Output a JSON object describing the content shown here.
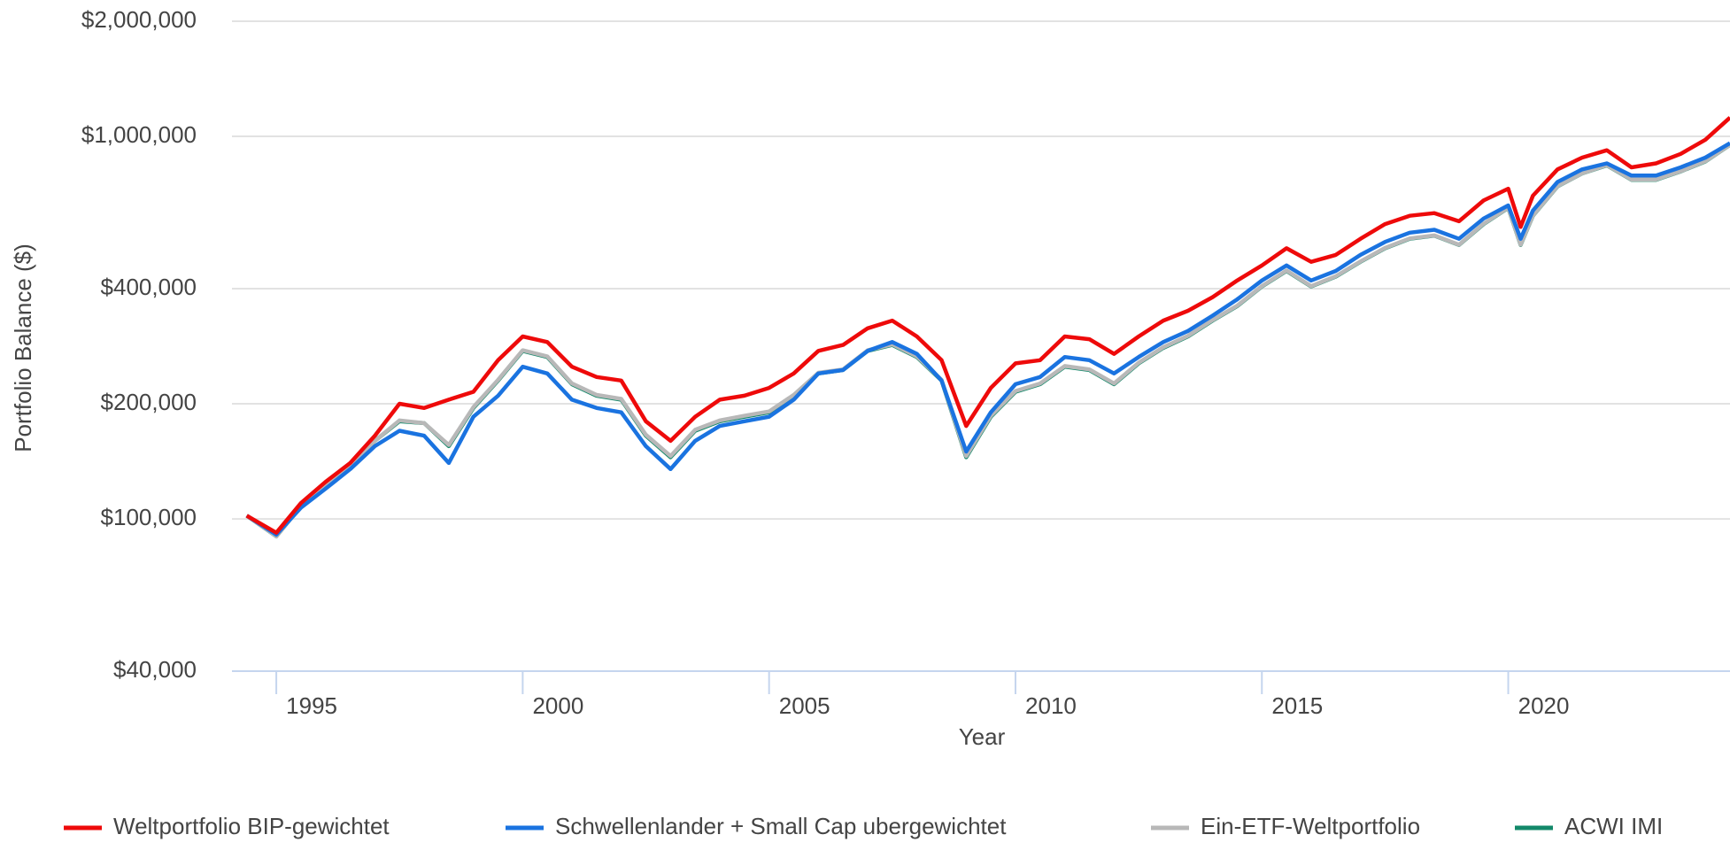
{
  "chart_data": {
    "type": "line",
    "y_label": "Portfolio Balance ($)",
    "x_label": "Year",
    "log_y": true,
    "grid": true,
    "legend": "bottom",
    "xlim": [
      1994.1,
      2024.5
    ],
    "xticks": [
      1995,
      2000,
      2005,
      2010,
      2015,
      2020
    ],
    "ylim": [
      40000,
      2000000
    ],
    "yticks": [
      {
        "value": 40000,
        "label": "$40,000"
      },
      {
        "value": 100000,
        "label": "$100,000"
      },
      {
        "value": 200000,
        "label": "$200,000"
      },
      {
        "value": 400000,
        "label": "$400,000"
      },
      {
        "value": 1000000,
        "label": "$1,000,000"
      },
      {
        "value": 2000000,
        "label": "$2,000,000"
      }
    ],
    "x": [
      1994.4,
      1995,
      1995.5,
      1996,
      1996.5,
      1997,
      1997.5,
      1998,
      1998.5,
      1999,
      1999.5,
      2000,
      2000.5,
      2001,
      2001.5,
      2002,
      2002.5,
      2003,
      2003.5,
      2004,
      2004.5,
      2005,
      2005.5,
      2006,
      2006.5,
      2007,
      2007.5,
      2008,
      2008.5,
      2009,
      2009.5,
      2010,
      2010.5,
      2011,
      2011.5,
      2012,
      2012.5,
      2013,
      2013.5,
      2014,
      2014.5,
      2015,
      2015.5,
      2016,
      2016.5,
      2017,
      2017.5,
      2018,
      2018.5,
      2019,
      2019.5,
      2020,
      2020.25,
      2020.5,
      2021,
      2021.5,
      2022,
      2022.5,
      2023,
      2023.5,
      2024,
      2024.5
    ],
    "series": [
      {
        "name": "Weltportfolio BIP-gewichtet",
        "color": "#ee0a0a",
        "values": [
          102000,
          92000,
          110000,
          125000,
          140000,
          165000,
          200000,
          195000,
          205000,
          215000,
          260000,
          300000,
          290000,
          250000,
          235000,
          230000,
          180000,
          160000,
          185000,
          205000,
          210000,
          220000,
          240000,
          275000,
          285000,
          315000,
          330000,
          300000,
          260000,
          175000,
          220000,
          255000,
          260000,
          300000,
          295000,
          270000,
          300000,
          330000,
          350000,
          380000,
          420000,
          460000,
          510000,
          470000,
          490000,
          540000,
          590000,
          620000,
          630000,
          600000,
          680000,
          730000,
          580000,
          700000,
          820000,
          880000,
          920000,
          830000,
          850000,
          900000,
          980000,
          1120000
        ]
      },
      {
        "name": "Schwellenlander + Small Cap ubergewichtet",
        "color": "#1a73e0",
        "values": [
          102000,
          91000,
          107000,
          120000,
          135000,
          155000,
          170000,
          165000,
          140000,
          185000,
          210000,
          250000,
          240000,
          205000,
          195000,
          190000,
          155000,
          135000,
          160000,
          175000,
          180000,
          185000,
          205000,
          240000,
          245000,
          275000,
          290000,
          270000,
          230000,
          150000,
          190000,
          225000,
          235000,
          265000,
          260000,
          240000,
          265000,
          290000,
          310000,
          340000,
          375000,
          420000,
          460000,
          420000,
          445000,
          490000,
          530000,
          560000,
          570000,
          540000,
          610000,
          660000,
          540000,
          640000,
          760000,
          820000,
          850000,
          790000,
          790000,
          830000,
          880000,
          960000
        ]
      },
      {
        "name": "Ein-ETF-Weltportfolio",
        "color": "#b8b8b8",
        "values": [
          102000,
          90000,
          108000,
          122000,
          138000,
          160000,
          181000,
          178000,
          156000,
          196000,
          231000,
          276000,
          266000,
          226000,
          211000,
          206000,
          166000,
          146000,
          171000,
          181000,
          186000,
          191000,
          211000,
          241000,
          246000,
          276000,
          286000,
          266000,
          231000,
          146000,
          186000,
          216000,
          226000,
          251000,
          246000,
          226000,
          256000,
          281000,
          301000,
          331000,
          361000,
          406000,
          446000,
          406000,
          431000,
          471000,
          511000,
          541000,
          551000,
          521000,
          591000,
          651000,
          521000,
          621000,
          741000,
          801000,
          841000,
          771000,
          771000,
          811000,
          861000,
          951000
        ]
      },
      {
        "name": "ACWI IMI",
        "color": "#13896a",
        "values": [
          102000,
          90000,
          108000,
          122000,
          138000,
          160000,
          180000,
          178000,
          155000,
          195000,
          230000,
          275000,
          265000,
          225000,
          210000,
          205000,
          165000,
          145000,
          170000,
          180000,
          185000,
          190000,
          210000,
          240000,
          245000,
          275000,
          285000,
          265000,
          230000,
          145000,
          185000,
          215000,
          225000,
          250000,
          245000,
          225000,
          255000,
          280000,
          300000,
          330000,
          360000,
          405000,
          445000,
          405000,
          430000,
          470000,
          510000,
          540000,
          550000,
          520000,
          590000,
          650000,
          520000,
          620000,
          740000,
          800000,
          840000,
          770000,
          770000,
          810000,
          860000,
          950000
        ]
      }
    ]
  }
}
